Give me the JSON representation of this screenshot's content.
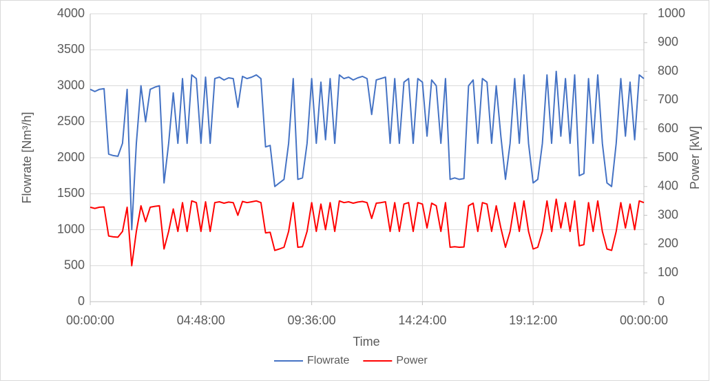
{
  "chart_data": {
    "type": "line",
    "x_label": "Time",
    "y_label": "Flowrate [Nm³/h]",
    "y2_label": "Power [kW]",
    "x": [
      0,
      0.2,
      0.4,
      0.6,
      0.8,
      1,
      1.2,
      1.4,
      1.6,
      1.8,
      2,
      2.2,
      2.4,
      2.6,
      2.8,
      3,
      3.2,
      3.4,
      3.6,
      3.8,
      4,
      4.2,
      4.4,
      4.6,
      4.8,
      5,
      5.2,
      5.4,
      5.6,
      5.8,
      6,
      6.2,
      6.4,
      6.6,
      6.8,
      7,
      7.2,
      7.4,
      7.6,
      7.8,
      8,
      8.2,
      8.4,
      8.6,
      8.8,
      9,
      9.2,
      9.4,
      9.6,
      9.8,
      10,
      10.2,
      10.4,
      10.6,
      10.8,
      11,
      11.2,
      11.4,
      11.6,
      11.8,
      12,
      12.2,
      12.4,
      12.6,
      12.8,
      13,
      13.2,
      13.4,
      13.6,
      13.8,
      14,
      14.2,
      14.4,
      14.6,
      14.8,
      15,
      15.2,
      15.4,
      15.6,
      15.8,
      16,
      16.2,
      16.4,
      16.6,
      16.8,
      17,
      17.2,
      17.4,
      17.6,
      17.8,
      18,
      18.2,
      18.4,
      18.6,
      18.8,
      19,
      19.2,
      19.4,
      19.6,
      19.8,
      20,
      20.2,
      20.4,
      20.6,
      20.8,
      21,
      21.2,
      21.4,
      21.6,
      21.8,
      22,
      22.2,
      22.4,
      22.6,
      22.8,
      23,
      23.2,
      23.4,
      23.6,
      23.8,
      24
    ],
    "series": [
      {
        "name": "Flowrate",
        "color": "#4472c4",
        "axis": "y",
        "values": [
          2950,
          2920,
          2950,
          2960,
          2050,
          2030,
          2020,
          2200,
          2950,
          1000,
          2200,
          3000,
          2500,
          2950,
          2980,
          3000,
          1650,
          2200,
          2900,
          2200,
          3100,
          2200,
          3150,
          3100,
          2200,
          3120,
          2200,
          3100,
          3120,
          3080,
          3110,
          3100,
          2700,
          3130,
          3100,
          3120,
          3150,
          3100,
          2150,
          2170,
          1600,
          1650,
          1700,
          2200,
          3100,
          1700,
          1720,
          2200,
          3100,
          2200,
          3050,
          2250,
          3100,
          2200,
          3150,
          3100,
          3120,
          3080,
          3110,
          3130,
          3100,
          2600,
          3080,
          3100,
          3120,
          2200,
          3100,
          2200,
          3050,
          3100,
          2200,
          3100,
          3050,
          2300,
          3080,
          3000,
          2200,
          3100,
          1700,
          1720,
          1700,
          1710,
          3000,
          3080,
          2200,
          3100,
          3050,
          2200,
          3000,
          2300,
          1700,
          2200,
          3100,
          2200,
          3150,
          2200,
          1650,
          1700,
          2200,
          3150,
          2200,
          3200,
          2300,
          3100,
          2200,
          3150,
          1750,
          1780,
          3100,
          2200,
          3150,
          2200,
          1650,
          1600,
          2200,
          3100,
          2300,
          3050,
          2250,
          3150,
          3100
        ]
      },
      {
        "name": "Power",
        "color": "#ff0000",
        "axis": "y2",
        "values": [
          328,
          324,
          328,
          329,
          228,
          225,
          224,
          244,
          328,
          125,
          244,
          333,
          278,
          328,
          331,
          333,
          183,
          244,
          322,
          244,
          344,
          244,
          350,
          344,
          244,
          347,
          244,
          344,
          347,
          342,
          346,
          344,
          300,
          348,
          344,
          347,
          350,
          344,
          239,
          241,
          178,
          183,
          189,
          244,
          344,
          189,
          191,
          244,
          344,
          244,
          339,
          250,
          344,
          244,
          350,
          344,
          347,
          342,
          346,
          348,
          344,
          289,
          342,
          344,
          347,
          244,
          344,
          244,
          339,
          344,
          244,
          344,
          339,
          256,
          342,
          333,
          244,
          344,
          189,
          191,
          189,
          190,
          333,
          342,
          244,
          344,
          339,
          244,
          333,
          256,
          189,
          244,
          344,
          244,
          350,
          244,
          183,
          189,
          244,
          350,
          244,
          356,
          256,
          344,
          244,
          350,
          194,
          198,
          344,
          244,
          350,
          244,
          183,
          178,
          244,
          344,
          256,
          339,
          250,
          350,
          344
        ]
      }
    ],
    "xlim": [
      0,
      24
    ],
    "xticks": [
      {
        "value": 0,
        "label": "00:00:00"
      },
      {
        "value": 4.8,
        "label": "04:48:00"
      },
      {
        "value": 9.6,
        "label": "09:36:00"
      },
      {
        "value": 14.4,
        "label": "14:24:00"
      },
      {
        "value": 19.2,
        "label": "19:12:00"
      },
      {
        "value": 24,
        "label": "00:00:00"
      }
    ],
    "ylim": [
      0,
      4000
    ],
    "yticks": [
      0,
      500,
      1000,
      1500,
      2000,
      2500,
      3000,
      3500,
      4000
    ],
    "y2lim": [
      0,
      1000
    ],
    "y2ticks": [
      0,
      100,
      200,
      300,
      400,
      500,
      600,
      700,
      800,
      900,
      1000
    ],
    "grid": true,
    "legend": "bottom"
  }
}
